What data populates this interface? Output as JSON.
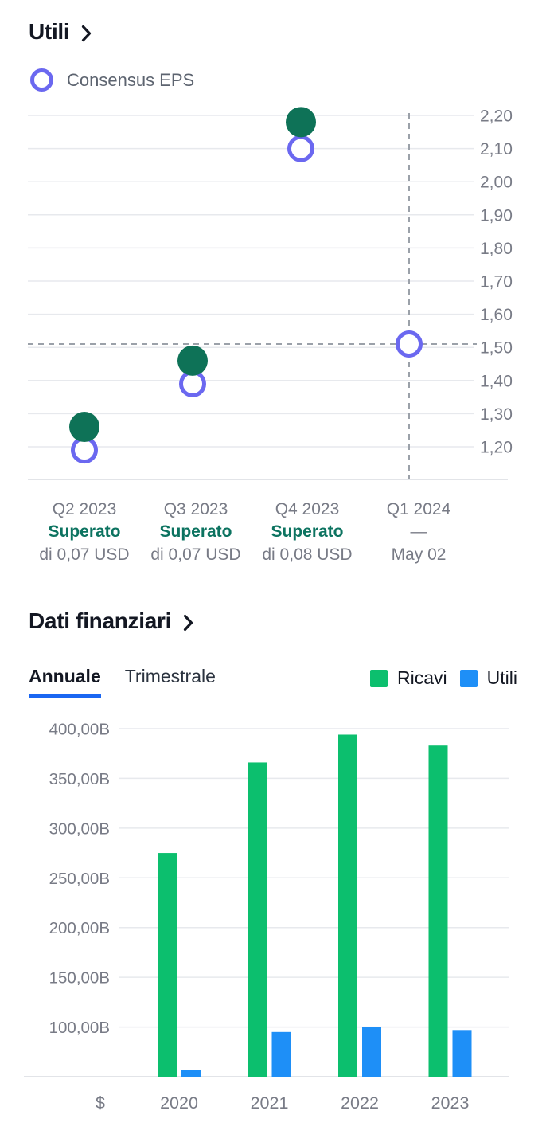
{
  "colors": {
    "text_primary": "#131722",
    "text_muted": "#787b86",
    "accent_blue": "#1a67f2",
    "beat_green": "#0c7360",
    "eps_reported": "#0e7257",
    "eps_consensus": "#6b68f0",
    "ricavi_green": "#0cbf6e",
    "utili_blue": "#1e8ff7",
    "gridline": "#e7e9ed",
    "axis_line": "#d8dbe0",
    "dashed_line": "#9ba1a9"
  },
  "icons": {
    "earnings_chevron": "chevron-right",
    "financials_chevron": "chevron-right",
    "consensus_marker": "ring-circle",
    "ricavi_swatch": "square",
    "utili_swatch": "square"
  },
  "earnings": {
    "title": "Utili",
    "legend_label": "Consensus EPS"
  },
  "financials": {
    "title": "Dati finanziari",
    "tabs": [
      {
        "label": "Annuale",
        "active": true
      },
      {
        "label": "Trimestrale",
        "active": false
      }
    ],
    "legend": [
      {
        "label": "Ricavi"
      },
      {
        "label": "Utili"
      }
    ],
    "currency_symbol": "$"
  },
  "chart_data": [
    {
      "type": "scatter",
      "title": "Utili",
      "legend": [
        "Consensus EPS"
      ],
      "legend_position": "top-left",
      "yaxis_position": "right",
      "grid": true,
      "categories": [
        "Q2 2023",
        "Q3 2023",
        "Q4 2023",
        "Q1 2024"
      ],
      "series": [
        {
          "key": "eps_reported",
          "style": "filled-circle",
          "color": "#0e7257",
          "values": [
            1.26,
            1.46,
            2.18,
            null
          ]
        },
        {
          "key": "eps_consensus",
          "style": "ring-circle",
          "color": "#6b68f0",
          "values": [
            1.19,
            1.39,
            2.1,
            1.51
          ]
        }
      ],
      "x_annotations": [
        {
          "quarter": "Q2 2023",
          "status": "Superato",
          "detail": "di 0,07 USD",
          "beat": true
        },
        {
          "quarter": "Q3 2023",
          "status": "Superato",
          "detail": "di 0,07 USD",
          "beat": true
        },
        {
          "quarter": "Q4 2023",
          "status": "Superato",
          "detail": "di 0,08 USD",
          "beat": true
        },
        {
          "quarter": "Q1 2024",
          "status": "—",
          "detail": "May 02",
          "beat": false
        }
      ],
      "ylim": [
        1.1,
        2.25
      ],
      "yticks": [
        {
          "value": 2.2,
          "label": "2,20"
        },
        {
          "value": 2.1,
          "label": "2,10"
        },
        {
          "value": 2.0,
          "label": "2,00"
        },
        {
          "value": 1.9,
          "label": "1,90"
        },
        {
          "value": 1.8,
          "label": "1,80"
        },
        {
          "value": 1.7,
          "label": "1,70"
        },
        {
          "value": 1.6,
          "label": "1,60"
        },
        {
          "value": 1.5,
          "label": "1,50"
        },
        {
          "value": 1.4,
          "label": "1,40"
        },
        {
          "value": 1.3,
          "label": "1,30"
        },
        {
          "value": 1.2,
          "label": "1,20"
        }
      ],
      "dashed_hline": 1.51,
      "dashed_vline_category": "Q1 2024"
    },
    {
      "type": "bar",
      "legend_position": "top-right",
      "yaxis_position": "left",
      "grid": true,
      "unit": "$",
      "categories": [
        "2020",
        "2021",
        "2022",
        "2023"
      ],
      "series": [
        {
          "name": "Ricavi",
          "color": "#0cbf6e",
          "values_billions": [
            275,
            366,
            394,
            383
          ]
        },
        {
          "name": "Utili",
          "color": "#1e8ff7",
          "values_billions": [
            57,
            95,
            100,
            97
          ]
        }
      ],
      "ylim_billions": [
        50,
        405
      ],
      "baseline_billions": 50,
      "yticks": [
        {
          "value": 400,
          "label": "400,00B"
        },
        {
          "value": 350,
          "label": "350,00B"
        },
        {
          "value": 300,
          "label": "300,00B"
        },
        {
          "value": 250,
          "label": "250,00B"
        },
        {
          "value": 200,
          "label": "200,00B"
        },
        {
          "value": 150,
          "label": "150,00B"
        },
        {
          "value": 100,
          "label": "100,00B"
        }
      ]
    }
  ]
}
